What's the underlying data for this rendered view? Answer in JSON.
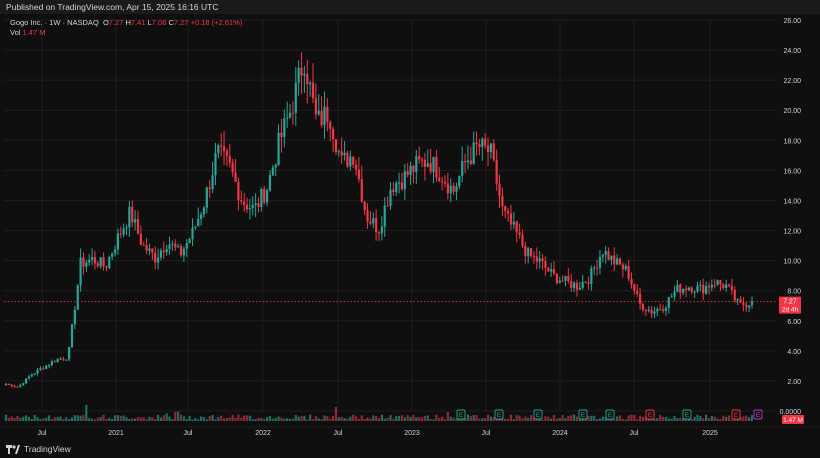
{
  "header": {
    "published": "Published on TradingView.com, Apr 15, 2025 16:16 UTC"
  },
  "legend": {
    "symbol": "Gogo Inc. · 1W · NASDAQ",
    "open_label": "O",
    "open": "7.27",
    "high_label": "H",
    "high": "7.41",
    "low_label": "L",
    "low": "7.06",
    "close_label": "C",
    "close": "7.27",
    "change": "+0.18 (+2.61%)",
    "vol_label": "Vol",
    "vol": "1.47 M"
  },
  "footer": {
    "brand": "TradingView"
  },
  "price_badge": {
    "value": "7.27",
    "countdown": "2d 4h"
  },
  "vol_badge": "1.47 M",
  "colors": {
    "up": "#26a69a",
    "down": "#f23645",
    "grid": "#1e1e1e",
    "text": "#d1d4dc",
    "earnings": "#26a69a",
    "earnings_neg": "#f23645",
    "dividend": "#b83cc8"
  },
  "chart_data": {
    "type": "candlestick",
    "title": "Gogo Inc. · 1W · NASDAQ",
    "y_axis": {
      "ticks": [
        "26.00",
        "24.00",
        "22.00",
        "20.00",
        "18.00",
        "16.00",
        "14.00",
        "12.00",
        "10.00",
        "8.00",
        "6.00",
        "4.00",
        "2.00",
        "0.0000"
      ],
      "range": [
        0,
        26
      ]
    },
    "x_axis": {
      "ticks": [
        "Jul",
        "2021",
        "Jul",
        "2022",
        "Jul",
        "2023",
        "Jul",
        "2024",
        "Jul",
        "2025"
      ]
    },
    "last_price": 7.27,
    "series": [
      {
        "name": "price",
        "points": [
          [
            "2020-04",
            1.8
          ],
          [
            "2020-05",
            1.6
          ],
          [
            "2020-06",
            2.4
          ],
          [
            "2020-07",
            2.9
          ],
          [
            "2020-08",
            3.4
          ],
          [
            "2020-09",
            3.6
          ],
          [
            "2020-10",
            9.8
          ],
          [
            "2020-11",
            10.1
          ],
          [
            "2020-12",
            9.6
          ],
          [
            "2021-01",
            11.5
          ],
          [
            "2021-02",
            13.2
          ],
          [
            "2021-03",
            11.0
          ],
          [
            "2021-04",
            10.2
          ],
          [
            "2021-05",
            11.3
          ],
          [
            "2021-06",
            10.4
          ],
          [
            "2021-07",
            11.8
          ],
          [
            "2021-08",
            14.0
          ],
          [
            "2021-09",
            17.2
          ],
          [
            "2021-10",
            16.2
          ],
          [
            "2021-11",
            14.0
          ],
          [
            "2021-12",
            13.4
          ],
          [
            "2022-01",
            14.8
          ],
          [
            "2022-02",
            17.9
          ],
          [
            "2022-03",
            20.2
          ],
          [
            "2022-04",
            23.5
          ],
          [
            "2022-05",
            19.2
          ],
          [
            "2022-06",
            19.9
          ],
          [
            "2022-07",
            16.5
          ],
          [
            "2022-08",
            17.1
          ],
          [
            "2022-09",
            13.0
          ],
          [
            "2022-10",
            12.1
          ],
          [
            "2022-11",
            15.0
          ],
          [
            "2022-12",
            15.5
          ],
          [
            "2023-01",
            16.3
          ],
          [
            "2023-02",
            16.7
          ],
          [
            "2023-03",
            15.8
          ],
          [
            "2023-04",
            14.6
          ],
          [
            "2023-05",
            16.6
          ],
          [
            "2023-06",
            17.6
          ],
          [
            "2023-07",
            17.2
          ],
          [
            "2023-08",
            13.2
          ],
          [
            "2023-09",
            11.9
          ],
          [
            "2023-10",
            10.4
          ],
          [
            "2023-11",
            9.9
          ],
          [
            "2023-12",
            9.0
          ],
          [
            "2024-01",
            8.6
          ],
          [
            "2024-02",
            8.3
          ],
          [
            "2024-03",
            8.9
          ],
          [
            "2024-04",
            10.7
          ],
          [
            "2024-05",
            9.9
          ],
          [
            "2024-06",
            9.3
          ],
          [
            "2024-07",
            7.1
          ],
          [
            "2024-08",
            6.6
          ],
          [
            "2024-09",
            7.0
          ],
          [
            "2024-10",
            8.1
          ],
          [
            "2024-11",
            8.3
          ],
          [
            "2024-12",
            8.1
          ],
          [
            "2025-01",
            8.6
          ],
          [
            "2025-02",
            8.3
          ],
          [
            "2025-03",
            7.0
          ],
          [
            "2025-04",
            7.27
          ]
        ]
      }
    ],
    "volume_scale_max": "approx",
    "events": [
      {
        "kind": "earnings",
        "label": "E"
      },
      {
        "kind": "earnings",
        "label": "E"
      },
      {
        "kind": "earnings",
        "label": "E"
      },
      {
        "kind": "earnings",
        "label": "E"
      },
      {
        "kind": "earnings",
        "label": "E"
      },
      {
        "kind": "earnings_neg",
        "label": "E"
      },
      {
        "kind": "earnings",
        "label": "E"
      },
      {
        "kind": "earnings_neg",
        "label": "E"
      },
      {
        "kind": "dividend",
        "label": "E"
      }
    ]
  }
}
